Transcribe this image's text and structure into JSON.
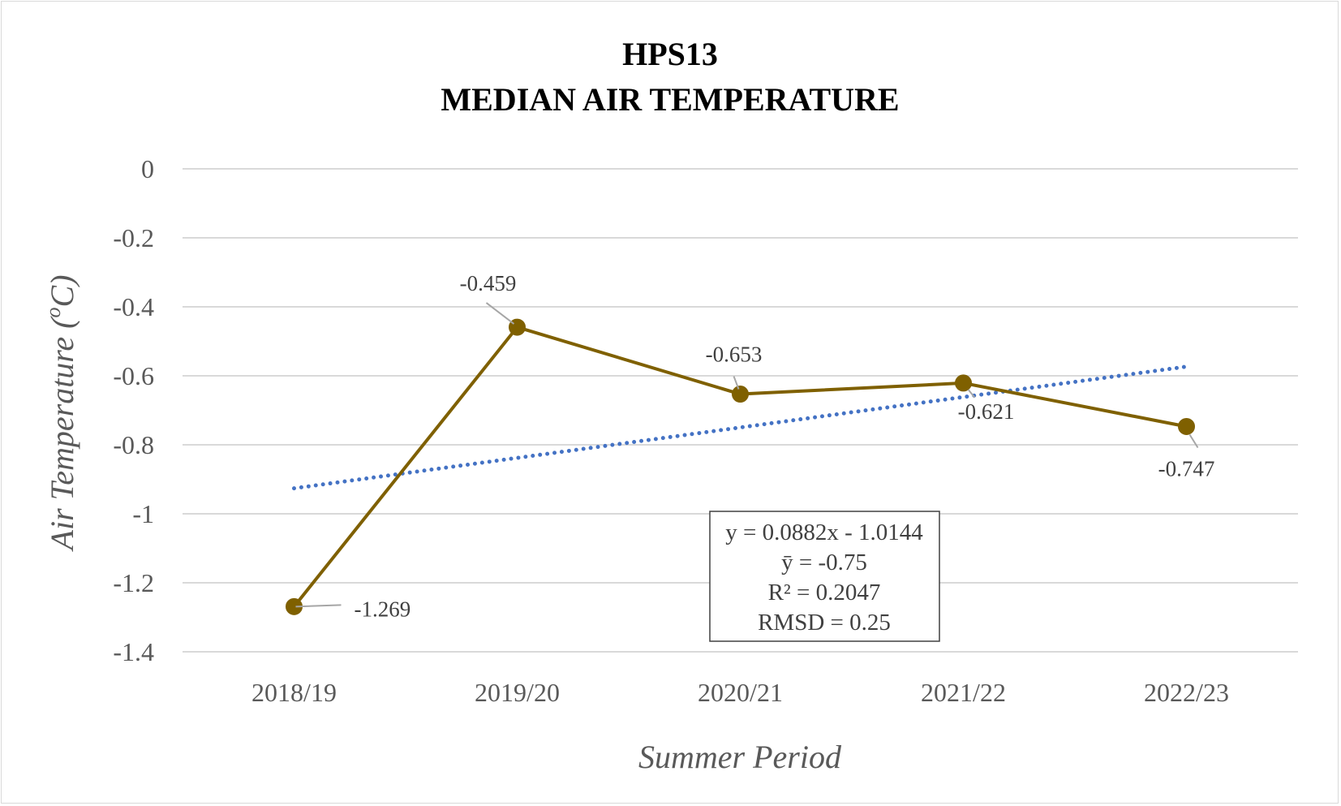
{
  "chart_data": {
    "type": "line",
    "title_line1": "HPS13",
    "title_line2": "MEDIAN AIR TEMPERATURE",
    "xlabel": "Summer Period",
    "ylabel_prefix": "Air Temperature (",
    "ylabel_sup": "o",
    "ylabel_suffix": "C)",
    "categories": [
      "2018/19",
      "2019/20",
      "2020/21",
      "2021/22",
      "2022/23"
    ],
    "series": [
      {
        "values": [
          -1.269,
          -0.459,
          -0.653,
          -0.621,
          -0.747
        ],
        "color": "#7f6000"
      }
    ],
    "data_labels": [
      "-1.269",
      "-0.459",
      "-0.653",
      "-0.621",
      "-0.747"
    ],
    "trendline": {
      "type": "linear",
      "slope": 0.0882,
      "intercept": -1.0144,
      "color": "#4472c4",
      "style": "dotted"
    },
    "annotation": {
      "equation": "y = 0.0882x - 1.0144",
      "mean": "ȳ = -0.75",
      "r2": "R² = 0.2047",
      "rmsd": "RMSD = 0.25"
    },
    "yticks": [
      "0",
      "-0.2",
      "-0.4",
      "-0.6",
      "-0.8",
      "-1",
      "-1.2",
      "-1.4"
    ],
    "ytick_values": [
      0,
      -0.2,
      -0.4,
      -0.6,
      -0.8,
      -1,
      -1.2,
      -1.4
    ],
    "ylim": [
      -1.4,
      0
    ],
    "grid": true,
    "legend": "none"
  }
}
